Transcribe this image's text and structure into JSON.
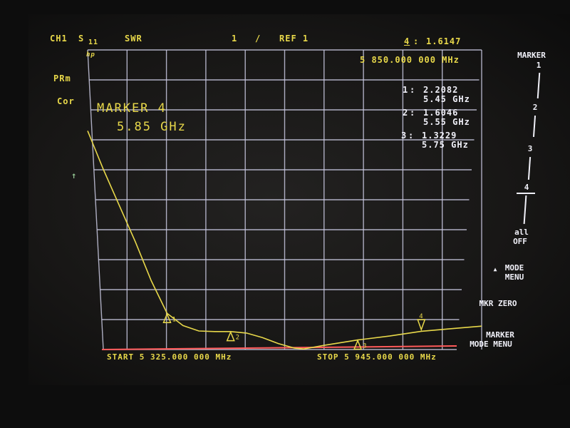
{
  "header": {
    "channel": "CH1",
    "param": "S",
    "param_sub": "11",
    "format": "SWR",
    "scale": "1",
    "scale_sep": "/",
    "ref": "REF 1",
    "active_marker": "4",
    "active_value": "1.6147"
  },
  "left_annotations": [
    "PRm",
    "Cor"
  ],
  "hp_logo": "hp",
  "marker_freq_readout": "5 850.000 000 MHz",
  "marker_banner": {
    "line1": "MARKER 4",
    "line2": "5.85 GHz"
  },
  "marker_list": [
    {
      "num": "1",
      "value": "2.2082",
      "freq": "5.45 GHz"
    },
    {
      "num": "2",
      "value": "1.6046",
      "freq": "5.55 GHz"
    },
    {
      "num": "3",
      "value": "1.3229",
      "freq": "5.75 GHz"
    }
  ],
  "footer": {
    "start": "START 5 325.000 000 MHz",
    "stop": "STOP 5 945.000 000 MHz"
  },
  "softkeys": {
    "title": "MARKER",
    "m1": "1",
    "m2": "2",
    "m3": "3",
    "m4": "4",
    "all": "all",
    "off": "OFF",
    "mode_menu_1": "MODE",
    "mode_menu_2": "MENU",
    "mkr_zero": "MKR ZERO",
    "marker_mode_1": "MARKER",
    "marker_mode_2": "MODE MENU"
  },
  "colors": {
    "trace": "#e8d84a",
    "grid": "#c8c8e0",
    "reference_line": "#ff5a5a",
    "text": "#e8d84a",
    "softkey": "#f0f0f8"
  },
  "chart_data": {
    "type": "line",
    "xlabel": "",
    "ylabel": "",
    "xlim": [
      5325,
      5945
    ],
    "x_unit": "MHz",
    "ylim": [
      1,
      11
    ],
    "y_scale_per_div": 1,
    "reference_value": 1,
    "grid": true,
    "divisions": {
      "x": 10,
      "y": 10
    },
    "series": [
      {
        "x": [
          5325,
          5350,
          5375,
          5400,
          5425,
          5450,
          5475,
          5500,
          5525,
          5550,
          5575,
          5600,
          5625,
          5650,
          5665,
          5700,
          5750,
          5800,
          5850,
          5900,
          5945
        ],
        "y": [
          8.3,
          7.0,
          5.8,
          4.6,
          3.3,
          2.21,
          1.8,
          1.62,
          1.6,
          1.6,
          1.55,
          1.4,
          1.2,
          1.05,
          1.02,
          1.15,
          1.32,
          1.45,
          1.61,
          1.7,
          1.78
        ]
      }
    ],
    "markers": [
      {
        "label": "1",
        "x": 5450,
        "y": 2.2082
      },
      {
        "label": "2",
        "x": 5550,
        "y": 1.6046
      },
      {
        "label": "3",
        "x": 5750,
        "y": 1.3229
      },
      {
        "label": "4",
        "x": 5850,
        "y": 1.6147,
        "active": true
      }
    ]
  }
}
